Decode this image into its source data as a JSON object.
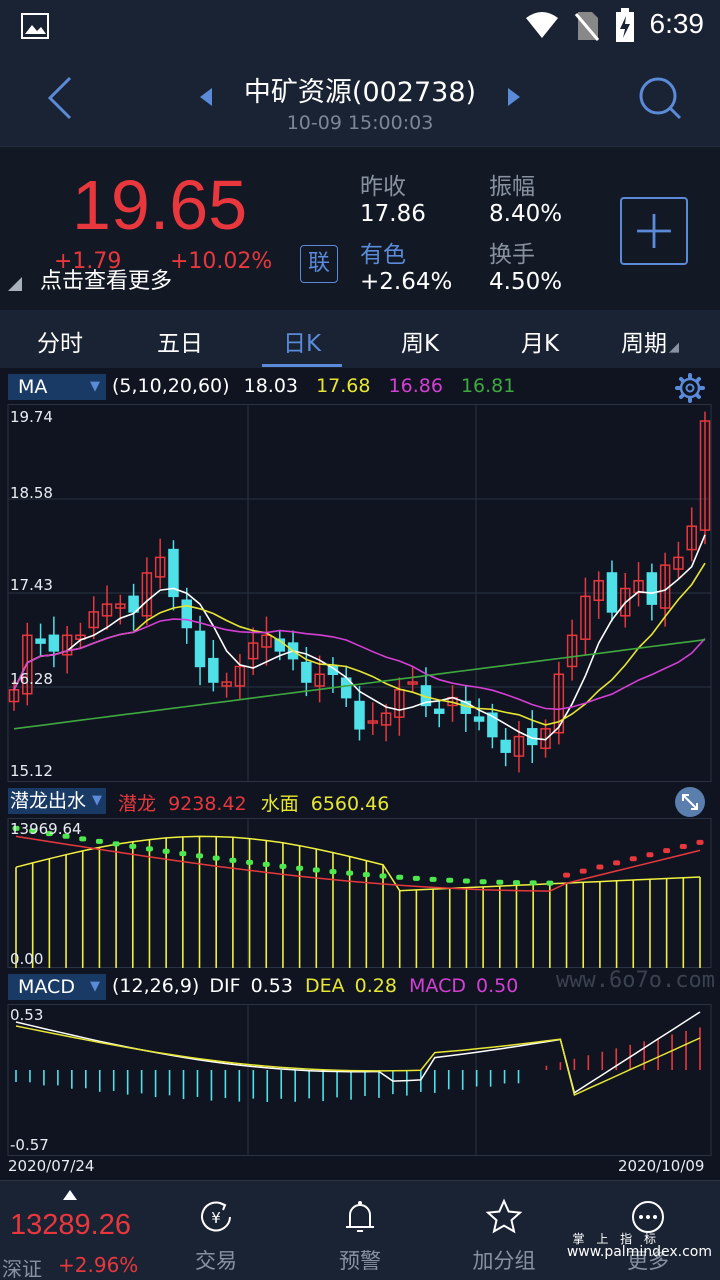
{
  "status": {
    "time": "6:39"
  },
  "header": {
    "title": "中矿资源(002738)",
    "subtitle": "10-09 15:00:03"
  },
  "quote": {
    "price": "19.65",
    "change": "+1.79",
    "change_pct": "+10.02%",
    "more_link": "点击查看更多",
    "lian": "联",
    "stats": [
      {
        "label": "昨收",
        "value": "17.86"
      },
      {
        "label": "振幅",
        "value": "8.40%"
      },
      {
        "label": "有色",
        "value": "+2.64%"
      },
      {
        "label": "换手",
        "value": "4.50%"
      }
    ]
  },
  "tabs": [
    "分时",
    "五日",
    "日K",
    "周K",
    "月K",
    "周期"
  ],
  "ma": {
    "name": "MA",
    "params": "(5,10,20,60)",
    "v1": "18.03",
    "v2": "17.68",
    "v3": "16.86",
    "v4": "16.81",
    "colors": {
      "ma5": "#ffffff",
      "ma10": "#e6e633",
      "ma20": "#d43fd4",
      "ma60": "#3fa83f"
    }
  },
  "price_axis": [
    "19.74",
    "18.58",
    "17.43",
    "16.28",
    "15.12"
  ],
  "qianlong": {
    "name": "潜龙出水",
    "label1": "潜龙",
    "value1": "9238.42",
    "label2": "水面",
    "value2": "6560.46",
    "axis_top": "13969.64",
    "axis_bottom": "0.00"
  },
  "macd": {
    "name": "MACD",
    "params": "(12,26,9)",
    "dif_label": "DIF",
    "dif": "0.53",
    "dea_label": "DEA",
    "dea": "0.28",
    "macd_label": "MACD",
    "macd": "0.50",
    "axis_top": "0.53",
    "axis_bottom": "-0.57"
  },
  "dates": {
    "start": "2020/07/24",
    "end": "2020/10/09"
  },
  "watermark": "www.6o7o.com",
  "bottom": {
    "index_value": "13289.26",
    "index_name": "深证",
    "index_pct": "+2.96%",
    "nav": [
      "交易",
      "预警",
      "加分组",
      "更多"
    ]
  },
  "footer_watermark": {
    "line1": "掌 上 指 标",
    "line2": "www.palmindex.com"
  },
  "colors": {
    "up": "#e8383d",
    "down": "#4fe0e8",
    "accent": "#5a8ad8"
  }
}
